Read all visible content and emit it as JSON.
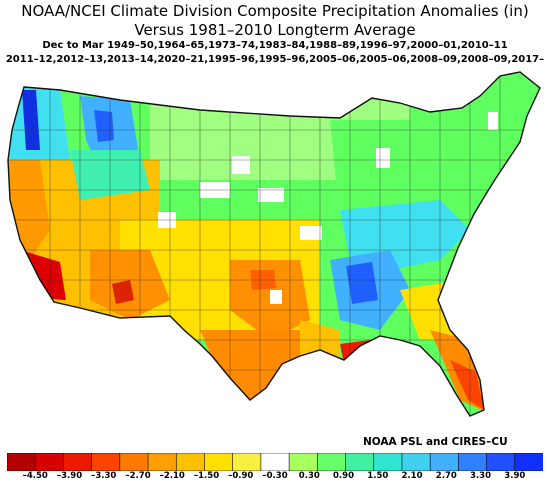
{
  "header": {
    "title_line1": "NOAA/NCEI Climate Division Composite Precipitation Anomalies (in)",
    "title_line2": "Versus 1981–2010 Longterm Average",
    "subtitle_line1": "Dec to Mar   1949–50,1964–65,1973–74,1983–84,1988–89,1996–97,2000–01,2010–11",
    "subtitle_line2": "2011–12,2012–13,2013–14,2020–21,1995–96,1995–96,2005–06,2005–06,2008–09,2008–09,2017–"
  },
  "credit": "NOAA PSL and CIRES–CU",
  "legend": {
    "tick_labels": [
      "–4.50",
      "–3.90",
      "–3.30",
      "–2.70",
      "–2.10",
      "–1.50",
      "–0.90",
      "–0.30",
      "0.30",
      "0.90",
      "1.50",
      "2.10",
      "2.70",
      "3.30",
      "3.90"
    ],
    "colors": [
      "#b30000",
      "#d90000",
      "#ee1a00",
      "#ff4400",
      "#ff7a00",
      "#ffa000",
      "#ffc000",
      "#ffe000",
      "#f7f040",
      "#ffffff",
      "#a8ff60",
      "#68ff68",
      "#40f0a0",
      "#30e6d0",
      "#40d0f0",
      "#40b0ff",
      "#3080ff",
      "#2050ff",
      "#1030ff"
    ]
  },
  "map": {
    "colors": {
      "deep_red": "#dd0000",
      "red_orange": "#ff4400",
      "orange": "#ff8c00",
      "light_orange": "#ffb000",
      "yellow": "#ffe000",
      "light_yellow": "#f0f060",
      "white": "#ffffff",
      "light_green": "#a0ff80",
      "green": "#60ff60",
      "teal": "#40f0b0",
      "cyan": "#40e0f0",
      "light_blue": "#40b0ff",
      "blue": "#2060ff",
      "dark_blue": "#1030e0",
      "border": "#222222"
    }
  }
}
